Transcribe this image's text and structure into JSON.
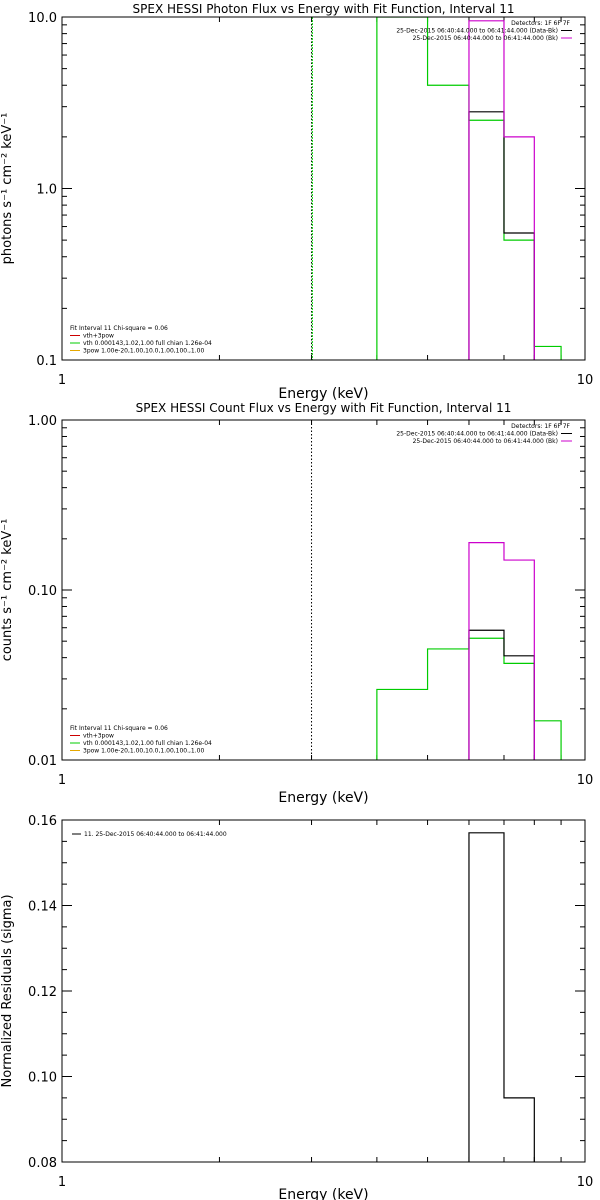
{
  "chart_data": [
    {
      "type": "line",
      "title": "SPEX HESSI Photon Flux vs Energy with Fit Function, Interval 11",
      "xlabel": "Energy (keV)",
      "ylabel": "photons s⁻¹ cm⁻² keV⁻¹",
      "xscale": "log",
      "yscale": "log",
      "xlim": [
        1,
        10
      ],
      "ylim": [
        0.1,
        10.0
      ],
      "x_ticks": [
        "1",
        "10"
      ],
      "y_ticks": [
        "0.1",
        "1.0",
        "10.0"
      ],
      "legend_top": [
        "Detectors: 1F 6F 7F",
        "25-Dec-2015 06:40:44.000 to 06:41:44.000 (Data-Bk)",
        "25-Dec-2015 06:40:44.000 to 06:41:44.000 (Bk)"
      ],
      "legend_bottom": [
        "Fit Interval 11   Chi-square = 0.06",
        "vth+3pow",
        "vth 0.000143,1.02,1.00  full chian 1.26e-04",
        "3pow 1.00e-20,1.00,10.0,1.00,100.,1.00"
      ],
      "vline_x": 3.0,
      "series": [
        {
          "name": "25-Dec-2015 06:40:44.000 to 06:41:44.000 (Data-Bk)",
          "color": "#000000",
          "edges": [
            6.0,
            7.0,
            8.0
          ],
          "values": [
            2.8,
            0.55
          ]
        },
        {
          "name": "25-Dec-2015 06:40:44.000 to 06:41:44.000 (Bk)",
          "color": "#cc00cc",
          "edges": [
            6.0,
            7.0,
            8.0
          ],
          "values": [
            9.5,
            2.0
          ]
        },
        {
          "name": "vth 0.000143,1.02,1.00  full chian 1.26e-04",
          "color": "#00cc00",
          "edges": [
            4.0,
            5.0,
            6.0,
            7.0,
            8.0,
            9.0
          ],
          "values": [
            10.0,
            4.0,
            2.5,
            0.5,
            0.12
          ]
        }
      ]
    },
    {
      "type": "line",
      "title": "SPEX HESSI Count Flux vs Energy with Fit Function, Interval 11",
      "xlabel": "Energy (keV)",
      "ylabel": "counts s⁻¹ cm⁻² keV⁻¹",
      "xscale": "log",
      "yscale": "log",
      "xlim": [
        1,
        10
      ],
      "ylim": [
        0.01,
        1.0
      ],
      "x_ticks": [
        "1",
        "10"
      ],
      "y_ticks": [
        "0.01",
        "0.10",
        "1.00"
      ],
      "legend_top": [
        "Detectors: 1F 6F 7F",
        "25-Dec-2015 06:40:44.000 to 06:41:44.000 (Data-Bk)",
        "25-Dec-2015 06:40:44.000 to 06:41:44.000 (Bk)"
      ],
      "legend_bottom": [
        "Fit Interval 11   Chi-square = 0.06",
        "vth+3pow",
        "vth 0.000143,1.02,1.00  full chian 1.26e-04",
        "3pow 1.00e-20,1.00,10.0,1.00,100.,1.00"
      ],
      "vline_x": 3.0,
      "series": [
        {
          "name": "25-Dec-2015 06:40:44.000 to 06:41:44.000 (Data-Bk)",
          "color": "#000000",
          "edges": [
            6.0,
            7.0,
            8.0
          ],
          "values": [
            0.058,
            0.041
          ]
        },
        {
          "name": "25-Dec-2015 06:40:44.000 to 06:41:44.000 (Bk)",
          "color": "#cc00cc",
          "edges": [
            6.0,
            7.0,
            8.0
          ],
          "values": [
            0.19,
            0.15
          ]
        },
        {
          "name": "vth 0.000143,1.02,1.00  full chian 1.26e-04",
          "color": "#00cc00",
          "edges": [
            4.0,
            5.0,
            6.0,
            7.0,
            8.0,
            9.0
          ],
          "values": [
            0.026,
            0.045,
            0.052,
            0.037,
            0.017
          ]
        }
      ]
    },
    {
      "type": "line",
      "title": "",
      "xlabel": "Energy (keV)",
      "ylabel": "Normalized Residuals (sigma)",
      "xscale": "log",
      "yscale": "linear",
      "xlim": [
        1,
        10
      ],
      "ylim": [
        0.08,
        0.16
      ],
      "x_ticks": [
        "1",
        "10"
      ],
      "y_ticks": [
        "0.08",
        "0.10",
        "0.12",
        "0.14",
        "0.16"
      ],
      "legend_top": [
        "11. 25-Dec-2015 06:40:44.000 to 06:41:44.000"
      ],
      "legend_bottom": [],
      "series": [
        {
          "name": "11. 25-Dec-2015 06:40:44.000 to 06:41:44.000",
          "color": "#000000",
          "edges": [
            6.0,
            7.0,
            8.0
          ],
          "values": [
            0.157,
            0.095
          ]
        }
      ]
    }
  ]
}
